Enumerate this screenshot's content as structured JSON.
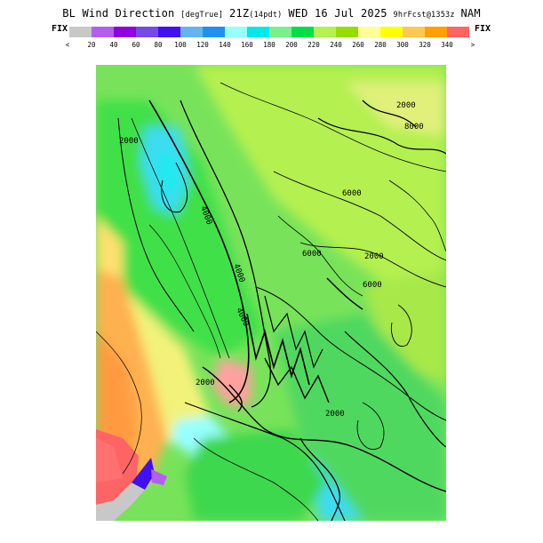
{
  "header": {
    "title_main": "BL Wind Direction",
    "units": "[degTrue]",
    "valid": "21Z",
    "local": "(14pdt)",
    "date": "WED 16 Jul 2025",
    "forecast": "9hrFcst@1353z",
    "model": "NAM"
  },
  "legend": {
    "fix_left": "FIX",
    "fix_right": "FIX",
    "under_marker": "<",
    "over_marker": ">",
    "labels": [
      "20",
      "40",
      "60",
      "80",
      "100",
      "120",
      "140",
      "160",
      "180",
      "200",
      "220",
      "240",
      "260",
      "280",
      "300",
      "320",
      "340"
    ],
    "colors": [
      "#c8c8c8",
      "#b45ef0",
      "#9000e0",
      "#7848e8",
      "#4010f0",
      "#64b4f0",
      "#1e90f0",
      "#96ffff",
      "#00e8e8",
      "#78f08c",
      "#00e046",
      "#b4f050",
      "#96dc00",
      "#ffff96",
      "#ffff00",
      "#ffc850",
      "#ffa000",
      "#ff6464"
    ]
  },
  "map": {
    "contour_labels": [
      "2000",
      "2000",
      "2000",
      "4000",
      "4000",
      "6000",
      "6000",
      "4000",
      "2000",
      "2000",
      "6000",
      "8000"
    ]
  }
}
